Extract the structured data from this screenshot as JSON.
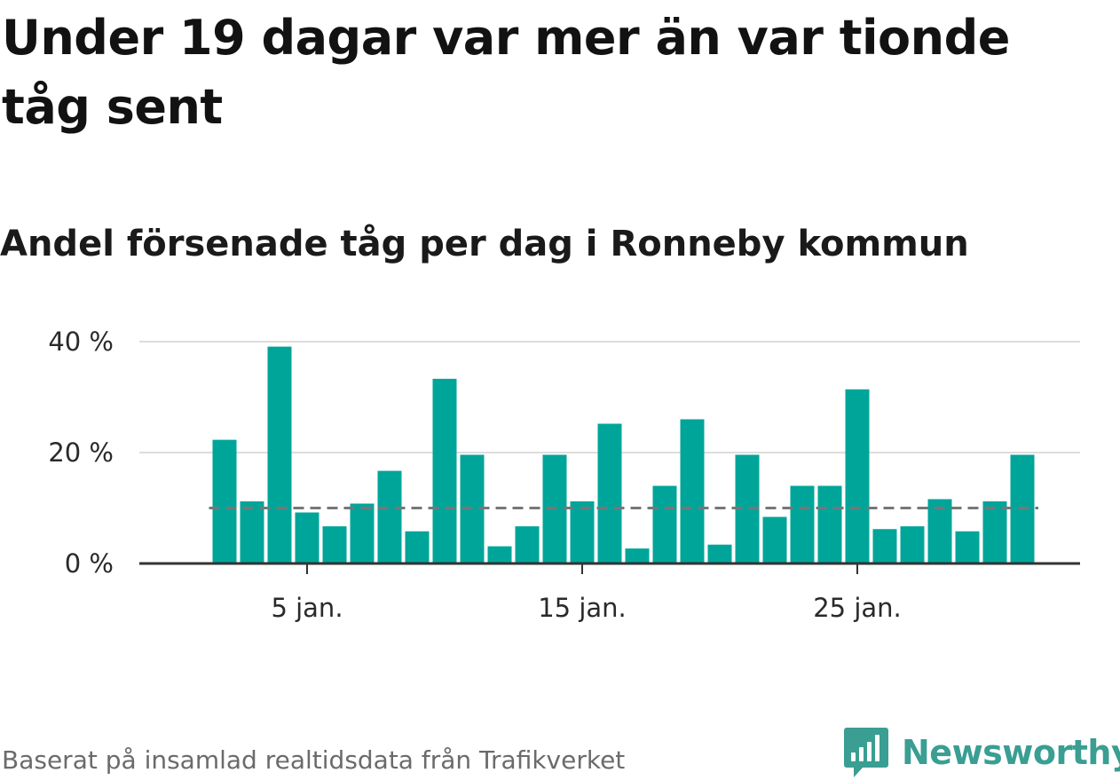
{
  "header": {
    "title": "Under 19 dagar var mer än var tionde tåg sent",
    "subtitle": "Andel försenade tåg per dag i Ronneby kommun"
  },
  "footer": {
    "source": "Baserat på insamlad realtidsdata från Trafikverket",
    "brand": "Newsworthy",
    "brand_icon": "bar-chart-speech-bubble-icon"
  },
  "colors": {
    "bar": "#00a59a",
    "reference_line": "#777777",
    "grid": "#dddddd",
    "axis": "#333333",
    "brand": "#3a9e92"
  },
  "chart_data": {
    "type": "bar",
    "title": "",
    "xlabel": "",
    "ylabel": "",
    "x_unit": "day of January",
    "x": [
      2,
      3,
      4,
      5,
      6,
      7,
      8,
      9,
      10,
      11,
      12,
      13,
      14,
      15,
      16,
      17,
      18,
      19,
      20,
      21,
      22,
      23,
      24,
      25,
      26,
      27,
      28,
      29,
      30,
      31
    ],
    "values": [
      22.3,
      11.2,
      39.1,
      9.2,
      6.7,
      10.8,
      16.7,
      5.8,
      33.3,
      19.6,
      3.1,
      6.7,
      19.6,
      11.2,
      25.2,
      2.7,
      14.0,
      26.0,
      3.4,
      19.6,
      8.4,
      14.0,
      14.0,
      31.4,
      6.2,
      6.7,
      11.6,
      5.8,
      11.2,
      19.6
    ],
    "reference_line": 10,
    "ylim": [
      0,
      40
    ],
    "y_ticks": [
      {
        "value": 0,
        "label": "0 %"
      },
      {
        "value": 20,
        "label": "20 %"
      },
      {
        "value": 40,
        "label": "40 %"
      }
    ],
    "x_ticks": [
      {
        "value": 5,
        "label": "5 jan."
      },
      {
        "value": 15,
        "label": "15 jan."
      },
      {
        "value": 25,
        "label": "25 jan."
      }
    ],
    "grid": true,
    "legend": "none"
  }
}
